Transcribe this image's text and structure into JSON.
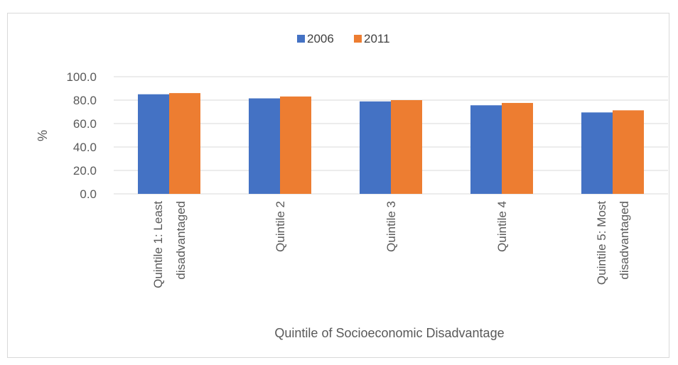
{
  "chart_data": {
    "type": "bar",
    "categories": [
      [
        "Quintile 1: Least",
        "disadvantaged"
      ],
      [
        "Quintile 2"
      ],
      [
        "Quintile 3"
      ],
      [
        "Quintile 4"
      ],
      [
        "Quintile 5: Most",
        "disadvantaged"
      ]
    ],
    "series": [
      {
        "name": "2006",
        "color": "#4472c4",
        "values": [
          85.0,
          81.5,
          78.9,
          75.6,
          69.5
        ]
      },
      {
        "name": "2011",
        "color": "#ed7d31",
        "values": [
          86.0,
          83.1,
          80.0,
          77.6,
          71.3
        ]
      }
    ],
    "title": "",
    "xlabel": "Quintile of Socioeconomic Disadvantage",
    "ylabel": "%",
    "ylim": [
      0,
      100
    ],
    "yticks": [
      "0.0",
      "20.0",
      "40.0",
      "60.0",
      "80.0",
      "100.0"
    ],
    "ytick_values": [
      0,
      20,
      40,
      60,
      80,
      100
    ],
    "legend_position": "top-center",
    "grid": true
  }
}
